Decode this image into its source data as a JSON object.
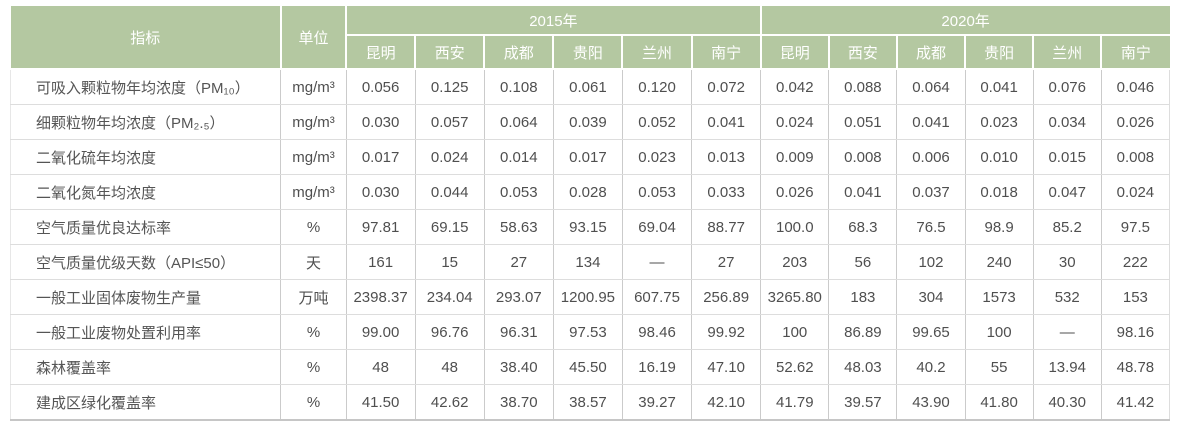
{
  "colors": {
    "header_bg": "#b4c8a1",
    "header_text": "#ffffff",
    "body_text": "#4f4f4f",
    "grid_vertical": "#cbcbcb",
    "grid_horizontal": "#dddddd"
  },
  "table": {
    "header": {
      "indicator": "指标",
      "unit": "单位",
      "year_groups": [
        {
          "label": "2015年",
          "cities": [
            "昆明",
            "西安",
            "成都",
            "贵阳",
            "兰州",
            "南宁"
          ]
        },
        {
          "label": "2020年",
          "cities": [
            "昆明",
            "西安",
            "成都",
            "贵阳",
            "兰州",
            "南宁"
          ]
        }
      ]
    },
    "rows": [
      {
        "indicator": "可吸入颗粒物年均浓度（PM₁₀）",
        "unit": "mg/m³",
        "y2015": [
          "0.056",
          "0.125",
          "0.108",
          "0.061",
          "0.120",
          "0.072"
        ],
        "y2020": [
          "0.042",
          "0.088",
          "0.064",
          "0.041",
          "0.076",
          "0.046"
        ]
      },
      {
        "indicator": "细颗粒物年均浓度（PM₂.₅）",
        "unit": "mg/m³",
        "y2015": [
          "0.030",
          "0.057",
          "0.064",
          "0.039",
          "0.052",
          "0.041"
        ],
        "y2020": [
          "0.024",
          "0.051",
          "0.041",
          "0.023",
          "0.034",
          "0.026"
        ]
      },
      {
        "indicator": "二氧化硫年均浓度",
        "unit": "mg/m³",
        "y2015": [
          "0.017",
          "0.024",
          "0.014",
          "0.017",
          "0.023",
          "0.013"
        ],
        "y2020": [
          "0.009",
          "0.008",
          "0.006",
          "0.010",
          "0.015",
          "0.008"
        ]
      },
      {
        "indicator": "二氧化氮年均浓度",
        "unit": "mg/m³",
        "y2015": [
          "0.030",
          "0.044",
          "0.053",
          "0.028",
          "0.053",
          "0.033"
        ],
        "y2020": [
          "0.026",
          "0.041",
          "0.037",
          "0.018",
          "0.047",
          "0.024"
        ]
      },
      {
        "indicator": "空气质量优良达标率",
        "unit": "%",
        "y2015": [
          "97.81",
          "69.15",
          "58.63",
          "93.15",
          "69.04",
          "88.77"
        ],
        "y2020": [
          "100.0",
          "68.3",
          "76.5",
          "98.9",
          "85.2",
          "97.5"
        ]
      },
      {
        "indicator": "空气质量优级天数（API≤50）",
        "unit": "天",
        "y2015": [
          "161",
          "15",
          "27",
          "134",
          "—",
          "27"
        ],
        "y2020": [
          "203",
          "56",
          "102",
          "240",
          "30",
          "222"
        ]
      },
      {
        "indicator": "一般工业固体废物生产量",
        "unit": "万吨",
        "y2015": [
          "2398.37",
          "234.04",
          "293.07",
          "1200.95",
          "607.75",
          "256.89"
        ],
        "y2020": [
          "3265.80",
          "183",
          "304",
          "1573",
          "532",
          "153"
        ]
      },
      {
        "indicator": "一般工业废物处置利用率",
        "unit": "%",
        "y2015": [
          "99.00",
          "96.76",
          "96.31",
          "97.53",
          "98.46",
          "99.92"
        ],
        "y2020": [
          "100",
          "86.89",
          "99.65",
          "100",
          "—",
          "98.16"
        ]
      },
      {
        "indicator": "森林覆盖率",
        "unit": "%",
        "y2015": [
          "48",
          "48",
          "38.40",
          "45.50",
          "16.19",
          "47.10"
        ],
        "y2020": [
          "52.62",
          "48.03",
          "40.2",
          "55",
          "13.94",
          "48.78"
        ]
      },
      {
        "indicator": "建成区绿化覆盖率",
        "unit": "%",
        "y2015": [
          "41.50",
          "42.62",
          "38.70",
          "38.57",
          "39.27",
          "42.10"
        ],
        "y2020": [
          "41.79",
          "39.57",
          "43.90",
          "41.80",
          "40.30",
          "41.42"
        ]
      }
    ]
  }
}
